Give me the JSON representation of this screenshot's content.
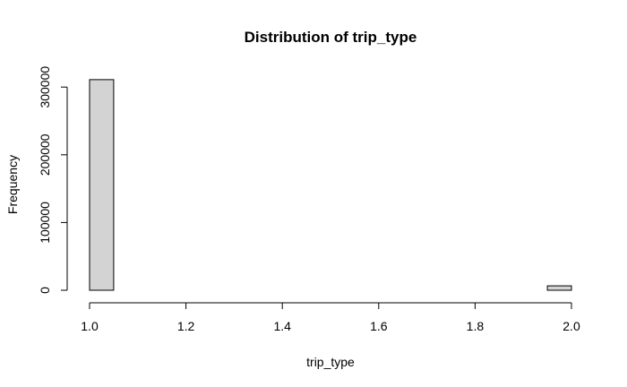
{
  "chart_data": {
    "type": "bar",
    "title": "Distribution of trip_type",
    "xlabel": "trip_type",
    "ylabel": "Frequency",
    "xlim": [
      1.0,
      2.0
    ],
    "ylim": [
      0,
      310000
    ],
    "x_ticks": [
      "1.0",
      "1.2",
      "1.4",
      "1.6",
      "1.8",
      "2.0"
    ],
    "x_tick_values": [
      1.0,
      1.2,
      1.4,
      1.6,
      1.8,
      2.0
    ],
    "y_ticks": [
      "0",
      "100000",
      "200000",
      "300000"
    ],
    "y_tick_values": [
      0,
      100000,
      200000,
      300000
    ],
    "bins": [
      {
        "from": 1.0,
        "to": 1.05,
        "value": 311000
      },
      {
        "from": 1.05,
        "to": 1.1,
        "value": 0
      },
      {
        "from": 1.1,
        "to": 1.15,
        "value": 0
      },
      {
        "from": 1.15,
        "to": 1.2,
        "value": 0
      },
      {
        "from": 1.2,
        "to": 1.25,
        "value": 0
      },
      {
        "from": 1.25,
        "to": 1.3,
        "value": 0
      },
      {
        "from": 1.3,
        "to": 1.35,
        "value": 0
      },
      {
        "from": 1.35,
        "to": 1.4,
        "value": 0
      },
      {
        "from": 1.4,
        "to": 1.45,
        "value": 0
      },
      {
        "from": 1.45,
        "to": 1.5,
        "value": 0
      },
      {
        "from": 1.5,
        "to": 1.55,
        "value": 0
      },
      {
        "from": 1.55,
        "to": 1.6,
        "value": 0
      },
      {
        "from": 1.6,
        "to": 1.65,
        "value": 0
      },
      {
        "from": 1.65,
        "to": 1.7,
        "value": 0
      },
      {
        "from": 1.7,
        "to": 1.75,
        "value": 0
      },
      {
        "from": 1.75,
        "to": 1.8,
        "value": 0
      },
      {
        "from": 1.8,
        "to": 1.85,
        "value": 0
      },
      {
        "from": 1.85,
        "to": 1.9,
        "value": 0
      },
      {
        "from": 1.9,
        "to": 1.95,
        "value": 0
      },
      {
        "from": 1.95,
        "to": 2.0,
        "value": 6500
      }
    ],
    "bar_fill": "#d3d3d3",
    "bar_stroke": "#000000",
    "grid": false,
    "legend": "none"
  }
}
